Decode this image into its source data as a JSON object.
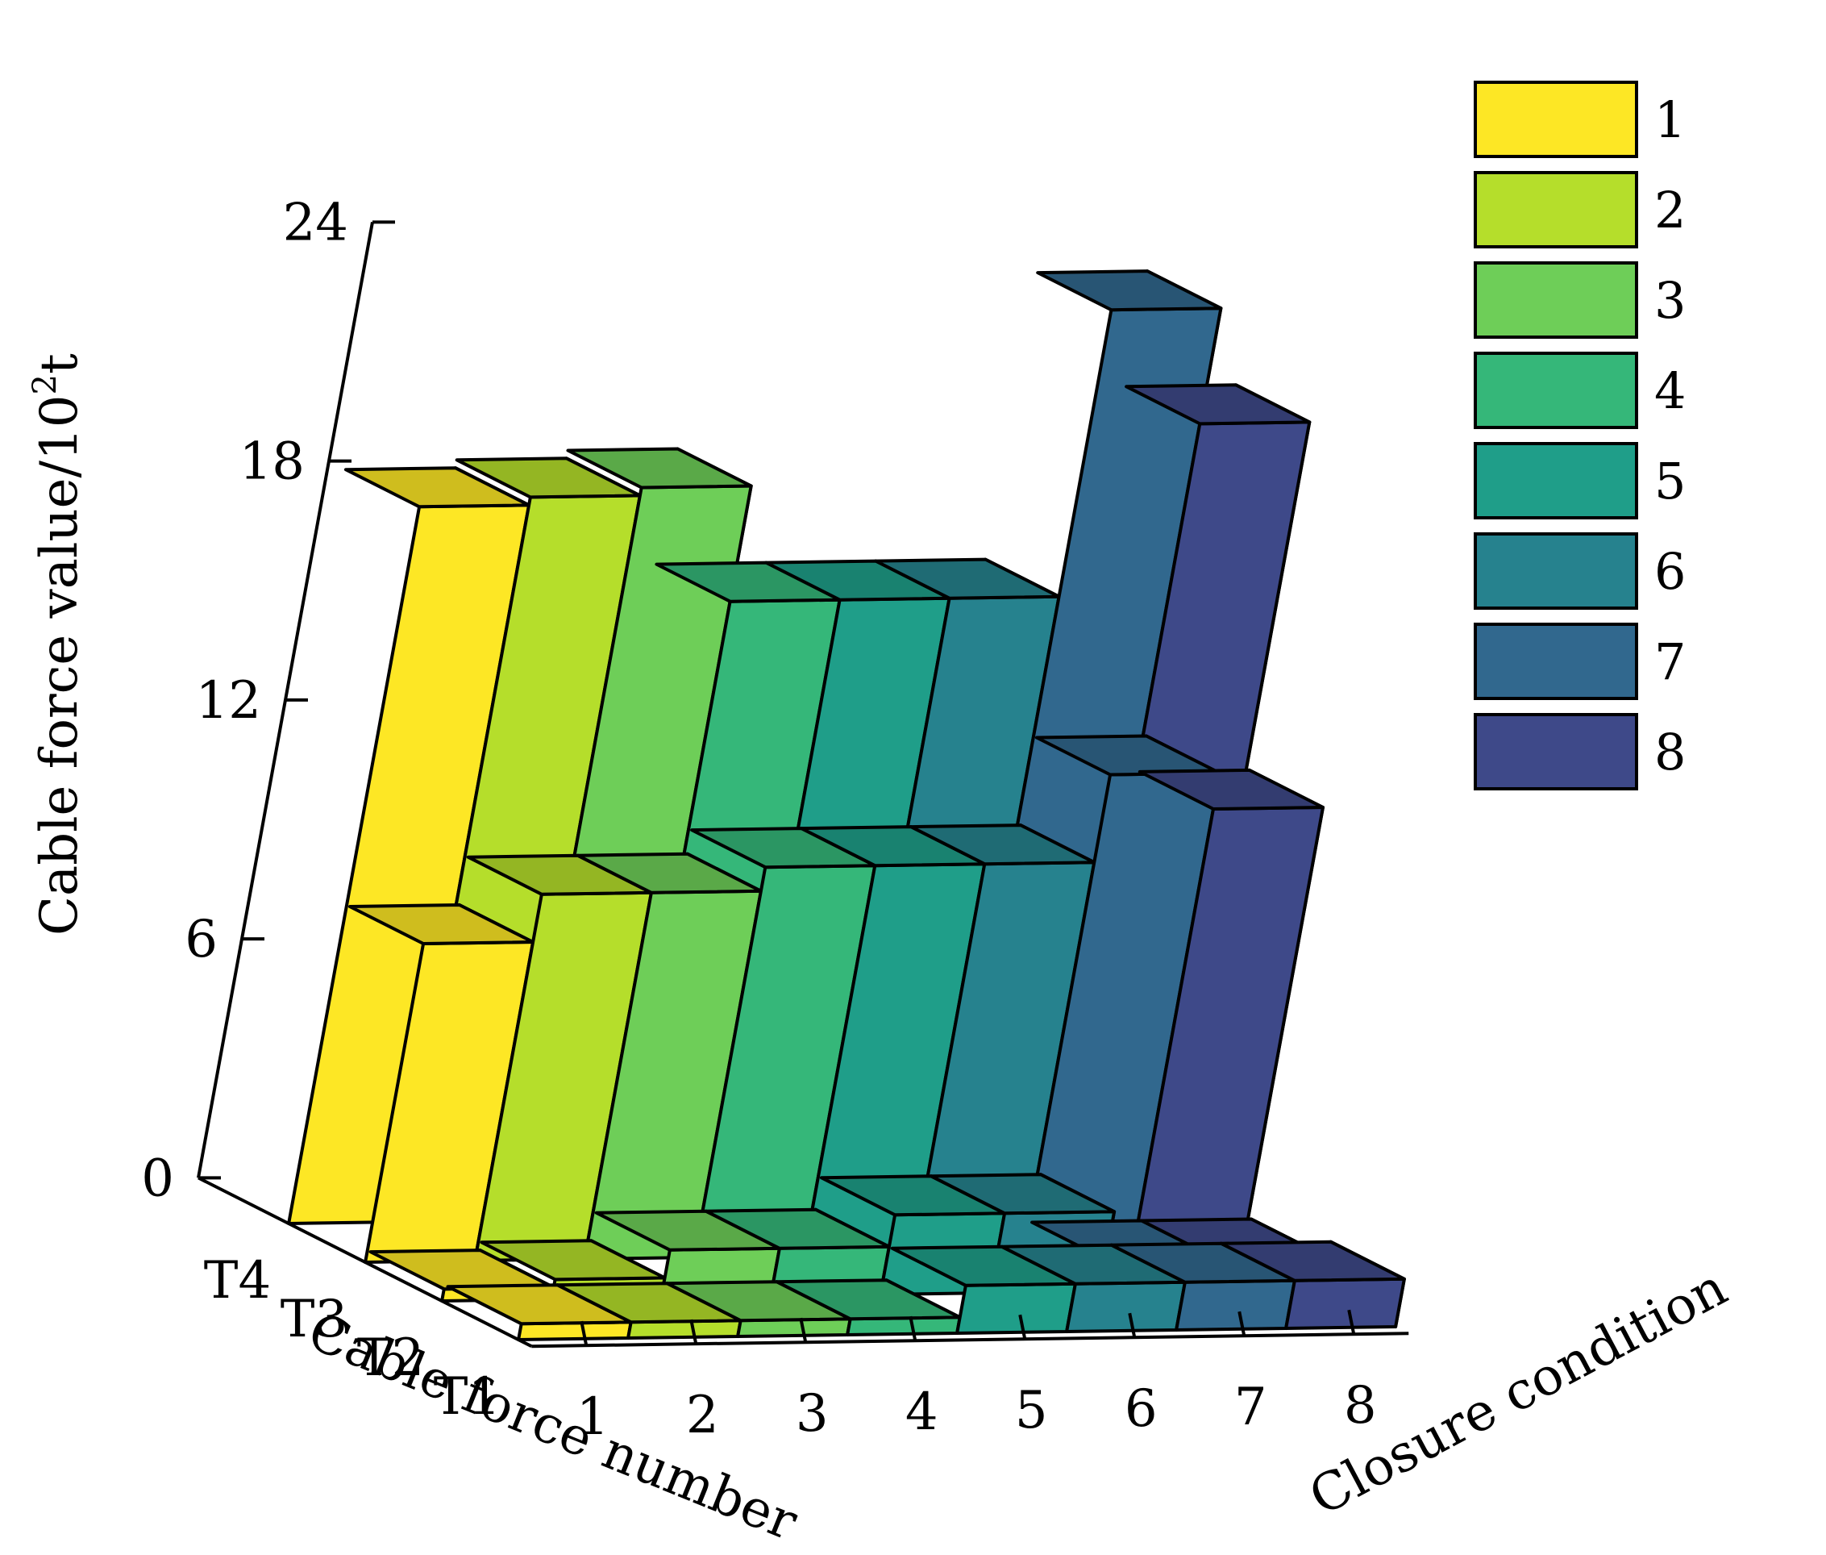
{
  "chart_data": {
    "type": "bar3d",
    "title": "",
    "xlabel": "Closure condition",
    "ylabel": "Cable force number",
    "zlabel": "Cable force value/10²t",
    "zlabel_main": "Cable force value/10",
    "zlabel_sup": "2",
    "zlabel_tail": "t",
    "zlim": [
      0,
      24
    ],
    "z_ticks": [
      "0",
      "6",
      "12",
      "18",
      "24"
    ],
    "categories_x": [
      "1",
      "2",
      "3",
      "4",
      "5",
      "6",
      "7",
      "8"
    ],
    "categories_y": [
      "T4",
      "T3",
      "T2",
      "T1"
    ],
    "legend_position": "top-right",
    "series": [
      {
        "name": "T4",
        "values": [
          18.0,
          18.2,
          18.4,
          15.5,
          15.5,
          15.5,
          22.7,
          19.8
        ]
      },
      {
        "name": "T3",
        "values": [
          8.0,
          9.2,
          9.2,
          9.8,
          9.8,
          9.8,
          12.0,
          11.1
        ]
      },
      {
        "name": "T2",
        "values": [
          0.3,
          0.5,
          1.2,
          1.2,
          2.0,
          2.0,
          0.8,
          0.8
        ]
      },
      {
        "name": "T1",
        "values": [
          0.4,
          0.4,
          0.4,
          0.4,
          1.2,
          1.2,
          1.2,
          1.2
        ]
      }
    ],
    "legend": [
      {
        "label": "1",
        "color": "#fde725"
      },
      {
        "label": "2",
        "color": "#b5de2b"
      },
      {
        "label": "3",
        "color": "#6ece58"
      },
      {
        "label": "4",
        "color": "#35b779"
      },
      {
        "label": "5",
        "color": "#1f9e89"
      },
      {
        "label": "6",
        "color": "#26828e"
      },
      {
        "label": "7",
        "color": "#31688e"
      },
      {
        "label": "8",
        "color": "#3e4989"
      }
    ]
  }
}
